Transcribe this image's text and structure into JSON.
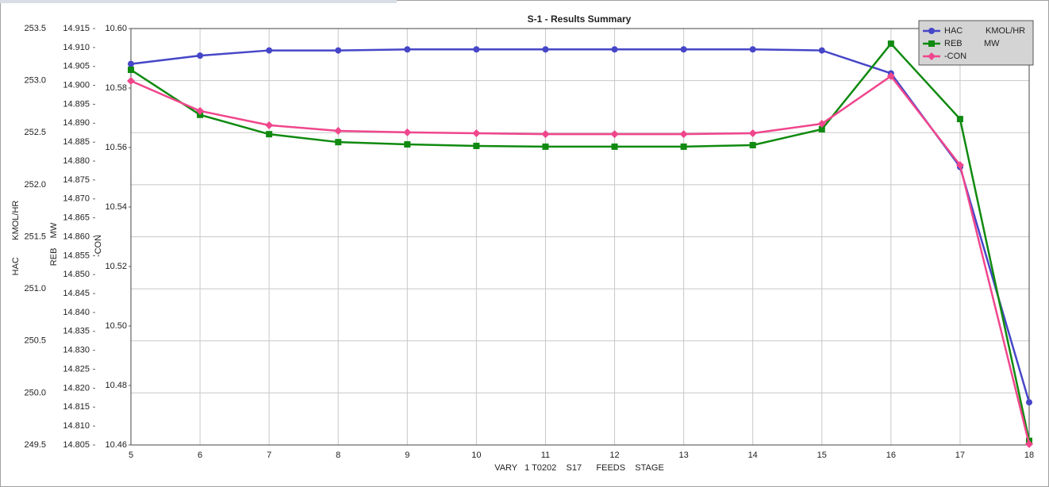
{
  "chart_data": {
    "type": "line",
    "title": "S-1 - Results Summary",
    "xlabel": "VARY   1 T0202    S17      FEEDS    STAGE",
    "ylabel": "HAC       KMOL/HR",
    "y2label": "REB    MW",
    "y3label": "-CON",
    "x": [
      5,
      6,
      7,
      8,
      9,
      10,
      11,
      12,
      13,
      14,
      15,
      16,
      17,
      18
    ],
    "xlim": [
      5,
      18
    ],
    "xticks": [
      5,
      6,
      7,
      8,
      9,
      10,
      11,
      12,
      13,
      14,
      15,
      16,
      17,
      18
    ],
    "ylim": [
      249.5,
      253.5
    ],
    "yticks": [
      249.5,
      {
        "value": 250,
        "label": "250.0"
      },
      250.5,
      {
        "value": 251,
        "label": "251.0"
      },
      251.5,
      {
        "value": 252,
        "label": "252.0"
      },
      252.5,
      {
        "value": 253,
        "label": "253.0"
      },
      253.5
    ],
    "y2lim": [
      14.805,
      14.915
    ],
    "y2ticks": [
      14.805,
      {
        "value": 14.81,
        "label": "14.810"
      },
      14.815,
      {
        "value": 14.82,
        "label": "14.820"
      },
      14.825,
      {
        "value": 14.83,
        "label": "14.830"
      },
      14.835,
      {
        "value": 14.84,
        "label": "14.840"
      },
      14.845,
      {
        "value": 14.85,
        "label": "14.850"
      },
      14.855,
      {
        "value": 14.86,
        "label": "14.860"
      },
      14.865,
      {
        "value": 14.87,
        "label": "14.870"
      },
      14.875,
      {
        "value": 14.88,
        "label": "14.880"
      },
      14.885,
      {
        "value": 14.89,
        "label": "14.890"
      },
      14.895,
      {
        "value": 14.9,
        "label": "14.900"
      },
      14.905,
      {
        "value": 14.91,
        "label": "14.910"
      },
      14.915
    ],
    "y3lim": [
      10.46,
      10.6
    ],
    "y3ticks": [
      10.46,
      10.48,
      {
        "value": 10.5,
        "label": "10.50"
      },
      10.52,
      10.54,
      10.56,
      10.58,
      {
        "value": 10.6,
        "label": "10.60"
      }
    ],
    "grid": true,
    "legend": "upper right",
    "series": [
      {
        "name": "HAC",
        "unit": "KMOL/HR",
        "color": "#4646c8",
        "marker": "circle",
        "axis": "y",
        "values": [
          253.16,
          253.24,
          253.29,
          253.29,
          253.3,
          253.3,
          253.3,
          253.3,
          253.3,
          253.3,
          253.29,
          253.07,
          252.17,
          249.91
        ]
      },
      {
        "name": "REB",
        "unit": "MW",
        "color": "#108a10",
        "marker": "square",
        "axis": "y2",
        "values": [
          14.9041,
          14.8922,
          14.8871,
          14.885,
          14.8844,
          14.884,
          14.8838,
          14.8838,
          14.8838,
          14.8842,
          14.8884,
          14.911,
          14.8911,
          14.8061
        ]
      },
      {
        "name": "-CON",
        "color": "#f0468c",
        "marker": "diamond",
        "axis": "y3",
        "values": [
          10.5824,
          10.5723,
          10.5675,
          10.5656,
          10.5651,
          10.5648,
          10.5645,
          10.5645,
          10.5645,
          10.5648,
          10.568,
          10.584,
          10.5541,
          10.4603
        ]
      }
    ]
  }
}
